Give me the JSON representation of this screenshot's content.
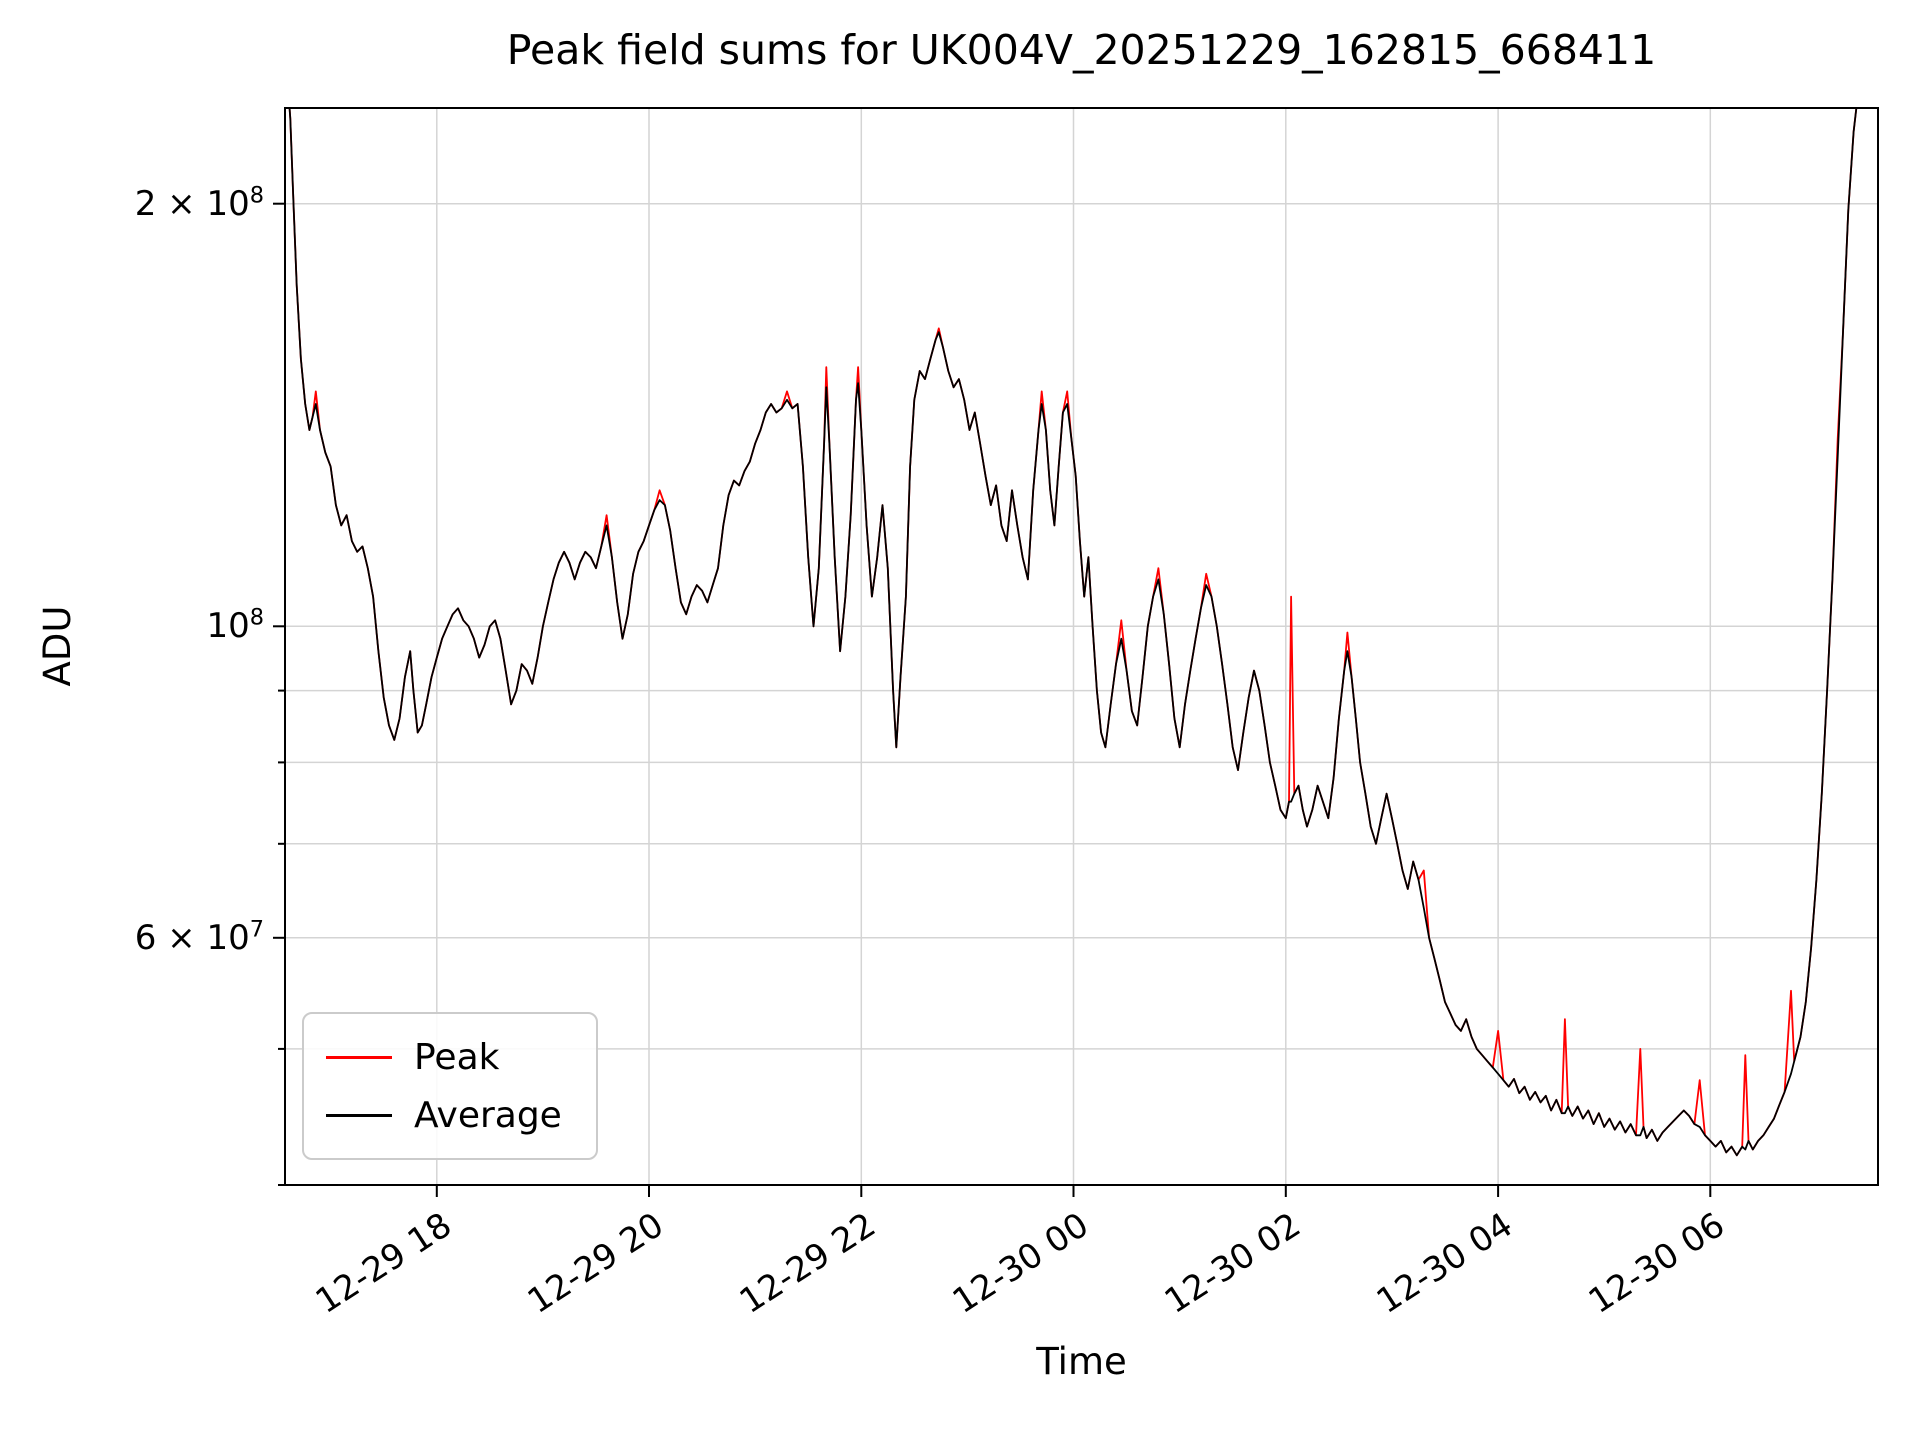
{
  "chart_data": {
    "type": "line",
    "title": "Peak field sums for UK004V_20251229_162815_668411",
    "xlabel": "Time",
    "ylabel": "ADU",
    "yscale": "log",
    "grid": true,
    "legend_position": "lower-left",
    "x_unit": "hours since 12-29 00:00",
    "xlim_hours": [
      16.57,
      31.58
    ],
    "ylim": [
      40000000.0,
      234000000.0
    ],
    "x_ticks": [
      {
        "hours": 18,
        "label": "12-29 18"
      },
      {
        "hours": 20,
        "label": "12-29 20"
      },
      {
        "hours": 22,
        "label": "12-29 22"
      },
      {
        "hours": 24,
        "label": "12-30 00"
      },
      {
        "hours": 26,
        "label": "12-30 02"
      },
      {
        "hours": 28,
        "label": "12-30 04"
      },
      {
        "hours": 30,
        "label": "12-30 06"
      }
    ],
    "y_ticks": [
      {
        "value": 200000000.0,
        "mantissa": "2 × 10",
        "exponent": "8"
      },
      {
        "value": 100000000.0,
        "mantissa": "10",
        "exponent": "8"
      },
      {
        "value": 60000000.0,
        "mantissa": "6 × 10",
        "exponent": "7"
      }
    ],
    "grid_y_values": [
      40000000.0,
      50000000.0,
      60000000.0,
      70000000.0,
      80000000.0,
      90000000.0,
      100000000.0,
      200000000.0
    ],
    "series": [
      {
        "name": "Peak",
        "color": "#ff0000"
      },
      {
        "name": "Average",
        "color": "#000000"
      }
    ],
    "points_columns": [
      "time_hours",
      "average_adu",
      "peak_adu_if_different"
    ],
    "points": [
      [
        16.57,
        260000000.0
      ],
      [
        16.62,
        230000000.0
      ],
      [
        16.65,
        200000000.0
      ],
      [
        16.68,
        175000000.0
      ],
      [
        16.72,
        155000000.0
      ],
      [
        16.76,
        144000000.0
      ],
      [
        16.8,
        138000000.0
      ],
      [
        16.83,
        141000000.0
      ],
      [
        16.86,
        144000000.0,
        147000000.0
      ],
      [
        16.9,
        138000000.0
      ],
      [
        16.95,
        133000000.0
      ],
      [
        17.0,
        130000000.0
      ],
      [
        17.05,
        122000000.0
      ],
      [
        17.1,
        118000000.0
      ],
      [
        17.15,
        120000000.0
      ],
      [
        17.2,
        115000000.0
      ],
      [
        17.25,
        113000000.0
      ],
      [
        17.3,
        114000000.0
      ],
      [
        17.35,
        110000000.0
      ],
      [
        17.4,
        105000000.0
      ],
      [
        17.45,
        96000000.0
      ],
      [
        17.5,
        89000000.0
      ],
      [
        17.55,
        85000000.0
      ],
      [
        17.6,
        83000000.0
      ],
      [
        17.65,
        86000000.0
      ],
      [
        17.7,
        92000000.0
      ],
      [
        17.75,
        96000000.0
      ],
      [
        17.78,
        90000000.0
      ],
      [
        17.82,
        84000000.0
      ],
      [
        17.86,
        85000000.0
      ],
      [
        17.9,
        88000000.0
      ],
      [
        17.95,
        92000000.0
      ],
      [
        18.0,
        95000000.0
      ],
      [
        18.05,
        98000000.0
      ],
      [
        18.1,
        100000000.0
      ],
      [
        18.15,
        102000000.0
      ],
      [
        18.2,
        103000000.0
      ],
      [
        18.25,
        101000000.0
      ],
      [
        18.3,
        100000000.0
      ],
      [
        18.35,
        98000000.0
      ],
      [
        18.4,
        95000000.0
      ],
      [
        18.45,
        97000000.0
      ],
      [
        18.5,
        100000000.0
      ],
      [
        18.55,
        101000000.0
      ],
      [
        18.6,
        98000000.0
      ],
      [
        18.65,
        93000000.0
      ],
      [
        18.7,
        88000000.0
      ],
      [
        18.75,
        90000000.0
      ],
      [
        18.8,
        94000000.0
      ],
      [
        18.85,
        93000000.0
      ],
      [
        18.9,
        91000000.0
      ],
      [
        18.95,
        95000000.0
      ],
      [
        19.0,
        100000000.0
      ],
      [
        19.05,
        104000000.0
      ],
      [
        19.1,
        108000000.0
      ],
      [
        19.15,
        111000000.0
      ],
      [
        19.2,
        113000000.0
      ],
      [
        19.25,
        111000000.0
      ],
      [
        19.3,
        108000000.0
      ],
      [
        19.35,
        111000000.0
      ],
      [
        19.4,
        113000000.0
      ],
      [
        19.45,
        112000000.0
      ],
      [
        19.5,
        110000000.0
      ],
      [
        19.55,
        114000000.0
      ],
      [
        19.6,
        118000000.0,
        120000000.0
      ],
      [
        19.65,
        112000000.0
      ],
      [
        19.7,
        104000000.0
      ],
      [
        19.75,
        98000000.0
      ],
      [
        19.8,
        102000000.0
      ],
      [
        19.85,
        109000000.0
      ],
      [
        19.9,
        113000000.0
      ],
      [
        19.95,
        115000000.0
      ],
      [
        20.0,
        118000000.0
      ],
      [
        20.05,
        121000000.0
      ],
      [
        20.1,
        123000000.0,
        125000000.0
      ],
      [
        20.15,
        122000000.0
      ],
      [
        20.2,
        117000000.0
      ],
      [
        20.25,
        110000000.0
      ],
      [
        20.3,
        104000000.0
      ],
      [
        20.35,
        102000000.0
      ],
      [
        20.4,
        105000000.0
      ],
      [
        20.45,
        107000000.0
      ],
      [
        20.5,
        106000000.0
      ],
      [
        20.55,
        104000000.0
      ],
      [
        20.6,
        107000000.0
      ],
      [
        20.65,
        110000000.0
      ],
      [
        20.7,
        118000000.0
      ],
      [
        20.75,
        124000000.0
      ],
      [
        20.8,
        127000000.0
      ],
      [
        20.85,
        126000000.0
      ],
      [
        20.9,
        129000000.0
      ],
      [
        20.95,
        131000000.0
      ],
      [
        21.0,
        135000000.0
      ],
      [
        21.05,
        138000000.0
      ],
      [
        21.1,
        142000000.0
      ],
      [
        21.15,
        144000000.0
      ],
      [
        21.2,
        142000000.0
      ],
      [
        21.25,
        143000000.0
      ],
      [
        21.3,
        145000000.0,
        147000000.0
      ],
      [
        21.35,
        143000000.0
      ],
      [
        21.4,
        144000000.0
      ],
      [
        21.45,
        130000000.0
      ],
      [
        21.5,
        112000000.0
      ],
      [
        21.55,
        100000000.0
      ],
      [
        21.6,
        110000000.0
      ],
      [
        21.65,
        135000000.0
      ],
      [
        21.67,
        148000000.0,
        153000000.0
      ],
      [
        21.7,
        135000000.0
      ],
      [
        21.75,
        112000000.0
      ],
      [
        21.8,
        96000000.0
      ],
      [
        21.85,
        105000000.0
      ],
      [
        21.9,
        120000000.0
      ],
      [
        21.95,
        145000000.0
      ],
      [
        21.97,
        149000000.0,
        153000000.0
      ],
      [
        22.0,
        138000000.0
      ],
      [
        22.05,
        118000000.0
      ],
      [
        22.1,
        105000000.0
      ],
      [
        22.15,
        112000000.0
      ],
      [
        22.2,
        122000000.0
      ],
      [
        22.25,
        110000000.0
      ],
      [
        22.3,
        90000000.0
      ],
      [
        22.33,
        82000000.0
      ],
      [
        22.37,
        92000000.0
      ],
      [
        22.42,
        105000000.0
      ],
      [
        22.46,
        130000000.0
      ],
      [
        22.5,
        145000000.0
      ],
      [
        22.55,
        152000000.0
      ],
      [
        22.6,
        150000000.0
      ],
      [
        22.65,
        155000000.0
      ],
      [
        22.7,
        160000000.0
      ],
      [
        22.73,
        162000000.0,
        163000000.0
      ],
      [
        22.77,
        158000000.0
      ],
      [
        22.82,
        152000000.0
      ],
      [
        22.87,
        148000000.0
      ],
      [
        22.92,
        150000000.0
      ],
      [
        22.97,
        145000000.0
      ],
      [
        23.02,
        138000000.0
      ],
      [
        23.07,
        142000000.0
      ],
      [
        23.12,
        135000000.0
      ],
      [
        23.17,
        128000000.0
      ],
      [
        23.22,
        122000000.0
      ],
      [
        23.27,
        126000000.0
      ],
      [
        23.32,
        118000000.0
      ],
      [
        23.37,
        115000000.0
      ],
      [
        23.42,
        125000000.0
      ],
      [
        23.47,
        118000000.0
      ],
      [
        23.52,
        112000000.0
      ],
      [
        23.57,
        108000000.0
      ],
      [
        23.62,
        125000000.0
      ],
      [
        23.67,
        138000000.0
      ],
      [
        23.7,
        144000000.0,
        147000000.0
      ],
      [
        23.74,
        138000000.0
      ],
      [
        23.78,
        125000000.0
      ],
      [
        23.82,
        118000000.0
      ],
      [
        23.86,
        130000000.0
      ],
      [
        23.9,
        142000000.0
      ],
      [
        23.94,
        144000000.0,
        147000000.0
      ],
      [
        23.98,
        136000000.0
      ],
      [
        24.02,
        128000000.0
      ],
      [
        24.06,
        115000000.0
      ],
      [
        24.1,
        105000000.0
      ],
      [
        24.14,
        112000000.0
      ],
      [
        24.18,
        100000000.0
      ],
      [
        24.22,
        90000000.0
      ],
      [
        24.26,
        84000000.0
      ],
      [
        24.3,
        82000000.0
      ],
      [
        24.35,
        88000000.0
      ],
      [
        24.4,
        94000000.0
      ],
      [
        24.45,
        98000000.0,
        101000000.0
      ],
      [
        24.5,
        93000000.0
      ],
      [
        24.55,
        87000000.0
      ],
      [
        24.6,
        85000000.0
      ],
      [
        24.65,
        92000000.0
      ],
      [
        24.7,
        100000000.0
      ],
      [
        24.75,
        105000000.0
      ],
      [
        24.8,
        108000000.0,
        110000000.0
      ],
      [
        24.85,
        102000000.0
      ],
      [
        24.9,
        94000000.0
      ],
      [
        24.95,
        86000000.0
      ],
      [
        25.0,
        82000000.0
      ],
      [
        25.05,
        88000000.0
      ],
      [
        25.1,
        93000000.0
      ],
      [
        25.15,
        98000000.0
      ],
      [
        25.2,
        103000000.0
      ],
      [
        25.25,
        107000000.0,
        109000000.0
      ],
      [
        25.3,
        105000000.0
      ],
      [
        25.35,
        100000000.0
      ],
      [
        25.4,
        94000000.0
      ],
      [
        25.45,
        88000000.0
      ],
      [
        25.5,
        82000000.0
      ],
      [
        25.55,
        79000000.0
      ],
      [
        25.6,
        84000000.0
      ],
      [
        25.65,
        89000000.0
      ],
      [
        25.7,
        93000000.0
      ],
      [
        25.75,
        90000000.0
      ],
      [
        25.8,
        85000000.0
      ],
      [
        25.85,
        80000000.0
      ],
      [
        25.9,
        77000000.0
      ],
      [
        25.95,
        74000000.0
      ],
      [
        26.0,
        73000000.0
      ],
      [
        26.03,
        75000000.0
      ],
      [
        26.05,
        75000000.0,
        105000000.0
      ],
      [
        26.08,
        76000000.0
      ],
      [
        26.12,
        77000000.0
      ],
      [
        26.16,
        74000000.0
      ],
      [
        26.2,
        72000000.0
      ],
      [
        26.25,
        74000000.0
      ],
      [
        26.3,
        77000000.0
      ],
      [
        26.35,
        75000000.0
      ],
      [
        26.4,
        73000000.0
      ],
      [
        26.45,
        78000000.0
      ],
      [
        26.5,
        86000000.0
      ],
      [
        26.55,
        93000000.0
      ],
      [
        26.58,
        96000000.0,
        99000000.0
      ],
      [
        26.62,
        92000000.0
      ],
      [
        26.66,
        86000000.0
      ],
      [
        26.7,
        80000000.0
      ],
      [
        26.75,
        76000000.0
      ],
      [
        26.8,
        72000000.0
      ],
      [
        26.85,
        70000000.0
      ],
      [
        26.9,
        73000000.0
      ],
      [
        26.95,
        76000000.0
      ],
      [
        27.0,
        73000000.0
      ],
      [
        27.05,
        70000000.0
      ],
      [
        27.1,
        67000000.0
      ],
      [
        27.15,
        65000000.0
      ],
      [
        27.2,
        68000000.0
      ],
      [
        27.25,
        66000000.0
      ],
      [
        27.3,
        63000000.0,
        67000000.0
      ],
      [
        27.35,
        60000000.0
      ],
      [
        27.4,
        58000000.0
      ],
      [
        27.45,
        56000000.0
      ],
      [
        27.5,
        54000000.0
      ],
      [
        27.55,
        53000000.0
      ],
      [
        27.6,
        52000000.0
      ],
      [
        27.65,
        51500000.0
      ],
      [
        27.7,
        52500000.0
      ],
      [
        27.75,
        51000000.0
      ],
      [
        27.8,
        50000000.0
      ],
      [
        27.85,
        49500000.0
      ],
      [
        27.9,
        49000000.0
      ],
      [
        27.95,
        48500000.0
      ],
      [
        28.0,
        48000000.0,
        51500000.0
      ],
      [
        28.05,
        47500000.0
      ],
      [
        28.1,
        47000000.0
      ],
      [
        28.15,
        47600000.0
      ],
      [
        28.2,
        46500000.0
      ],
      [
        28.25,
        47000000.0
      ],
      [
        28.3,
        46000000.0
      ],
      [
        28.35,
        46600000.0
      ],
      [
        28.4,
        45800000.0
      ],
      [
        28.45,
        46300000.0
      ],
      [
        28.5,
        45200000.0
      ],
      [
        28.55,
        46000000.0
      ],
      [
        28.6,
        45000000.0
      ],
      [
        28.63,
        45000000.0,
        52500000.0
      ],
      [
        28.66,
        45500000.0
      ],
      [
        28.7,
        44800000.0
      ],
      [
        28.75,
        45500000.0
      ],
      [
        28.8,
        44600000.0
      ],
      [
        28.85,
        45200000.0
      ],
      [
        28.9,
        44200000.0
      ],
      [
        28.95,
        45000000.0
      ],
      [
        29.0,
        44000000.0
      ],
      [
        29.05,
        44600000.0
      ],
      [
        29.1,
        43800000.0
      ],
      [
        29.15,
        44400000.0
      ],
      [
        29.2,
        43600000.0
      ],
      [
        29.25,
        44200000.0
      ],
      [
        29.3,
        43400000.0
      ],
      [
        29.34,
        43400000.0,
        50000000.0
      ],
      [
        29.37,
        44000000.0
      ],
      [
        29.4,
        43200000.0
      ],
      [
        29.45,
        43800000.0
      ],
      [
        29.5,
        43000000.0
      ],
      [
        29.55,
        43600000.0
      ],
      [
        29.6,
        44000000.0
      ],
      [
        29.65,
        44400000.0
      ],
      [
        29.7,
        44800000.0
      ],
      [
        29.75,
        45200000.0
      ],
      [
        29.8,
        44800000.0
      ],
      [
        29.85,
        44200000.0
      ],
      [
        29.9,
        44000000.0,
        47500000.0
      ],
      [
        29.95,
        43400000.0
      ],
      [
        30.0,
        43000000.0
      ],
      [
        30.05,
        42600000.0
      ],
      [
        30.1,
        43000000.0
      ],
      [
        30.15,
        42200000.0
      ],
      [
        30.2,
        42600000.0
      ],
      [
        30.25,
        42000000.0
      ],
      [
        30.3,
        42600000.0
      ],
      [
        30.33,
        42400000.0,
        49500000.0
      ],
      [
        30.36,
        43000000.0
      ],
      [
        30.4,
        42400000.0
      ],
      [
        30.45,
        43000000.0
      ],
      [
        30.5,
        43400000.0
      ],
      [
        30.55,
        44000000.0
      ],
      [
        30.6,
        44600000.0
      ],
      [
        30.65,
        45600000.0
      ],
      [
        30.7,
        46600000.0
      ],
      [
        30.76,
        48000000.0,
        55000000.0
      ],
      [
        30.79,
        49000000.0
      ],
      [
        30.85,
        51000000.0
      ],
      [
        30.9,
        54000000.0
      ],
      [
        30.95,
        59000000.0
      ],
      [
        31.0,
        66000000.0
      ],
      [
        31.05,
        76000000.0
      ],
      [
        31.1,
        90000000.0
      ],
      [
        31.15,
        108000000.0
      ],
      [
        31.2,
        132000000.0,
        136000000.0
      ],
      [
        31.25,
        162000000.0
      ],
      [
        31.3,
        198000000.0
      ],
      [
        31.35,
        225000000.0
      ],
      [
        31.42,
        250000000.0
      ],
      [
        31.58,
        260000000.0
      ]
    ]
  }
}
